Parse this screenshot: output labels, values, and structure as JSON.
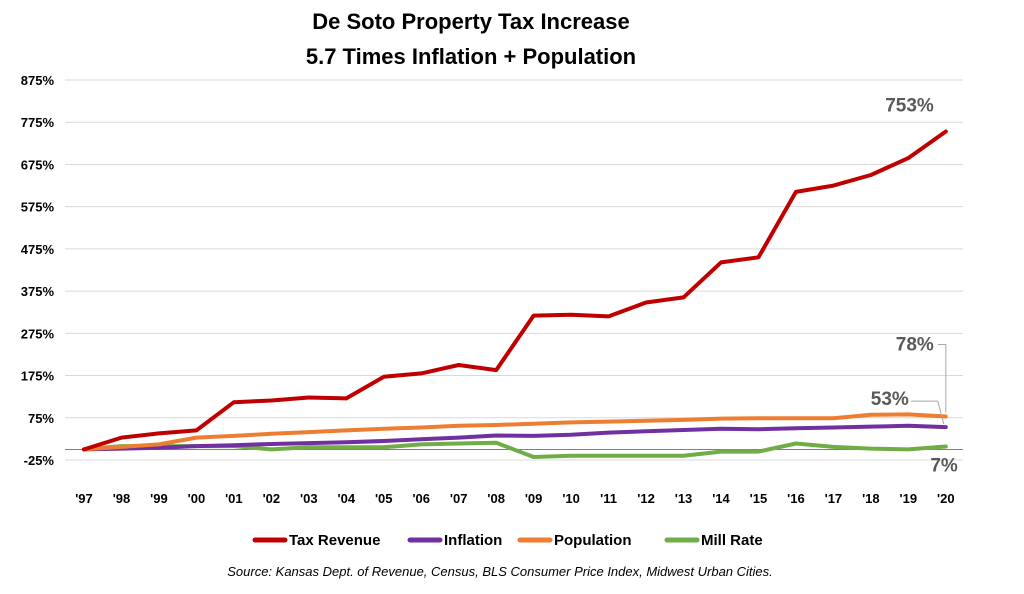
{
  "chart_data": {
    "type": "line",
    "title_lines": [
      "De Soto Property Tax Increase",
      "5.7 Times Inflation + Population"
    ],
    "xlabel": "",
    "ylabel": "",
    "categories": [
      "'97",
      "'98",
      "'99",
      "'00",
      "'01",
      "'02",
      "'03",
      "'04",
      "'05",
      "'06",
      "'07",
      "'08",
      "'09",
      "'10",
      "'11",
      "'12",
      "'13",
      "'14",
      "'15",
      "'16",
      "'17",
      "'18",
      "'19",
      "'20"
    ],
    "y_ticks": [
      "875%",
      "775%",
      "675%",
      "575%",
      "475%",
      "375%",
      "275%",
      "175%",
      "75%",
      "-25%"
    ],
    "ylim": [
      -25,
      875
    ],
    "grid": true,
    "legend_position": "bottom",
    "series": [
      {
        "name": "Tax Revenue",
        "color": "#C00000",
        "values": [
          0,
          28,
          38,
          45,
          112,
          116,
          123,
          121,
          172,
          180,
          200,
          188,
          317,
          319,
          315,
          348,
          360,
          443,
          455,
          610,
          625,
          650,
          690,
          753
        ]
      },
      {
        "name": "Inflation",
        "color": "#7030A0",
        "values": [
          0,
          2,
          4,
          8,
          10,
          13,
          15,
          17,
          20,
          24,
          28,
          33,
          32,
          35,
          40,
          43,
          46,
          49,
          48,
          50,
          52,
          54,
          56,
          53
        ]
      },
      {
        "name": "Population",
        "color": "#ED7D31",
        "values": [
          0,
          6,
          12,
          28,
          32,
          37,
          41,
          45,
          49,
          52,
          56,
          58,
          61,
          64,
          66,
          68,
          70,
          73,
          74,
          74,
          74,
          82,
          83,
          78
        ]
      },
      {
        "name": "Mill Rate",
        "color": "#70AD47",
        "values": [
          0,
          8,
          8,
          8,
          8,
          0,
          5,
          5,
          5,
          12,
          14,
          16,
          -18,
          -15,
          -15,
          -15,
          -15,
          -5,
          -5,
          14,
          6,
          2,
          0,
          7
        ]
      }
    ],
    "callouts": [
      {
        "text": "753%",
        "series": "Tax Revenue"
      },
      {
        "text": "78%",
        "series": "Population"
      },
      {
        "text": "53%",
        "series": "Inflation"
      },
      {
        "text": "7%",
        "series": "Mill Rate"
      }
    ],
    "source": "Source: Kansas Dept. of Revenue, Census, BLS Consumer Price Index, Midwest Urban Cities."
  }
}
